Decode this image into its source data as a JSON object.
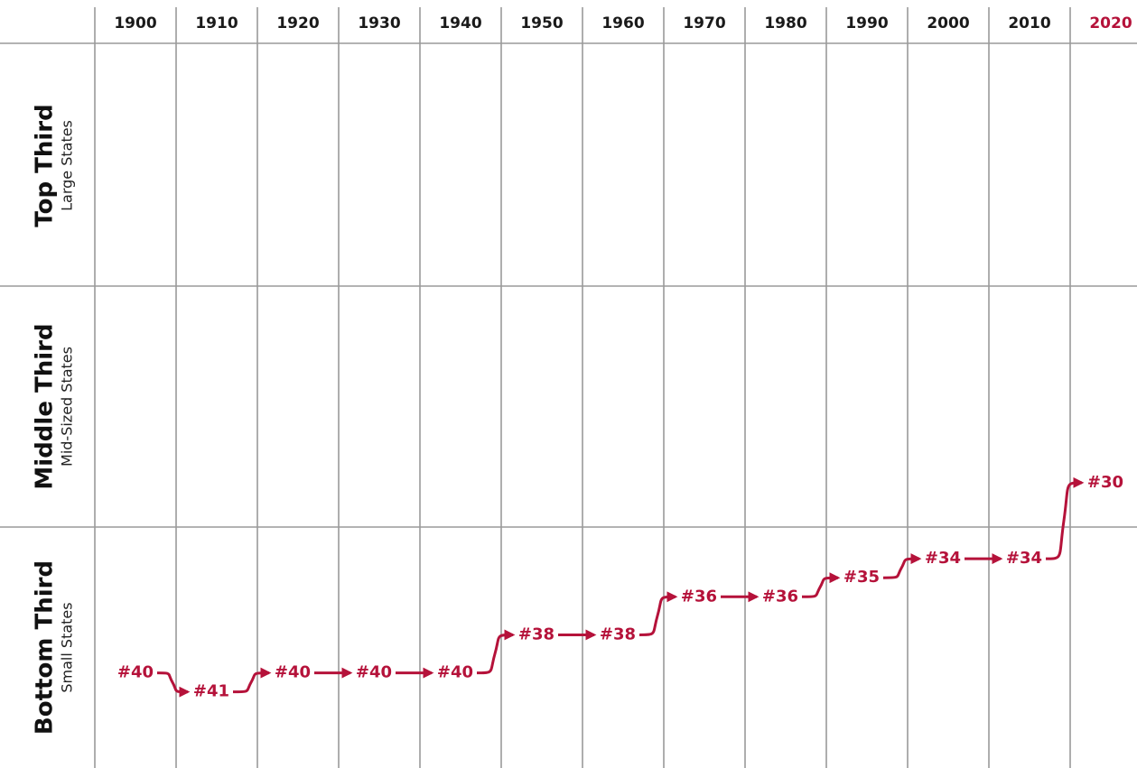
{
  "chart_data": {
    "type": "rank-steps",
    "categories": [
      "1900",
      "1910",
      "1920",
      "1930",
      "1940",
      "1950",
      "1960",
      "1970",
      "1980",
      "1990",
      "2000",
      "2010",
      "2020"
    ],
    "category_colors": [
      "#1a1a1a",
      "#1a1a1a",
      "#1a1a1a",
      "#1a1a1a",
      "#1a1a1a",
      "#1a1a1a",
      "#1a1a1a",
      "#1a1a1a",
      "#1a1a1a",
      "#1a1a1a",
      "#1a1a1a",
      "#1a1a1a",
      "#b5123a"
    ],
    "values": [
      40,
      41,
      40,
      40,
      40,
      38,
      38,
      36,
      36,
      35,
      34,
      34,
      30
    ],
    "value_labels": [
      "#40",
      "#41",
      "#40",
      "#40",
      "#40",
      "#38",
      "#38",
      "#36",
      "#36",
      "#35",
      "#34",
      "#34",
      "#30"
    ],
    "color": "#b5123a",
    "ylim": [
      45,
      7
    ],
    "bands": [
      {
        "title": "Top Third",
        "subtitle": "Large States"
      },
      {
        "title": "Middle Third",
        "subtitle": "Mid-Sized States"
      },
      {
        "title": "Bottom Third",
        "subtitle": "Small States"
      }
    ]
  }
}
